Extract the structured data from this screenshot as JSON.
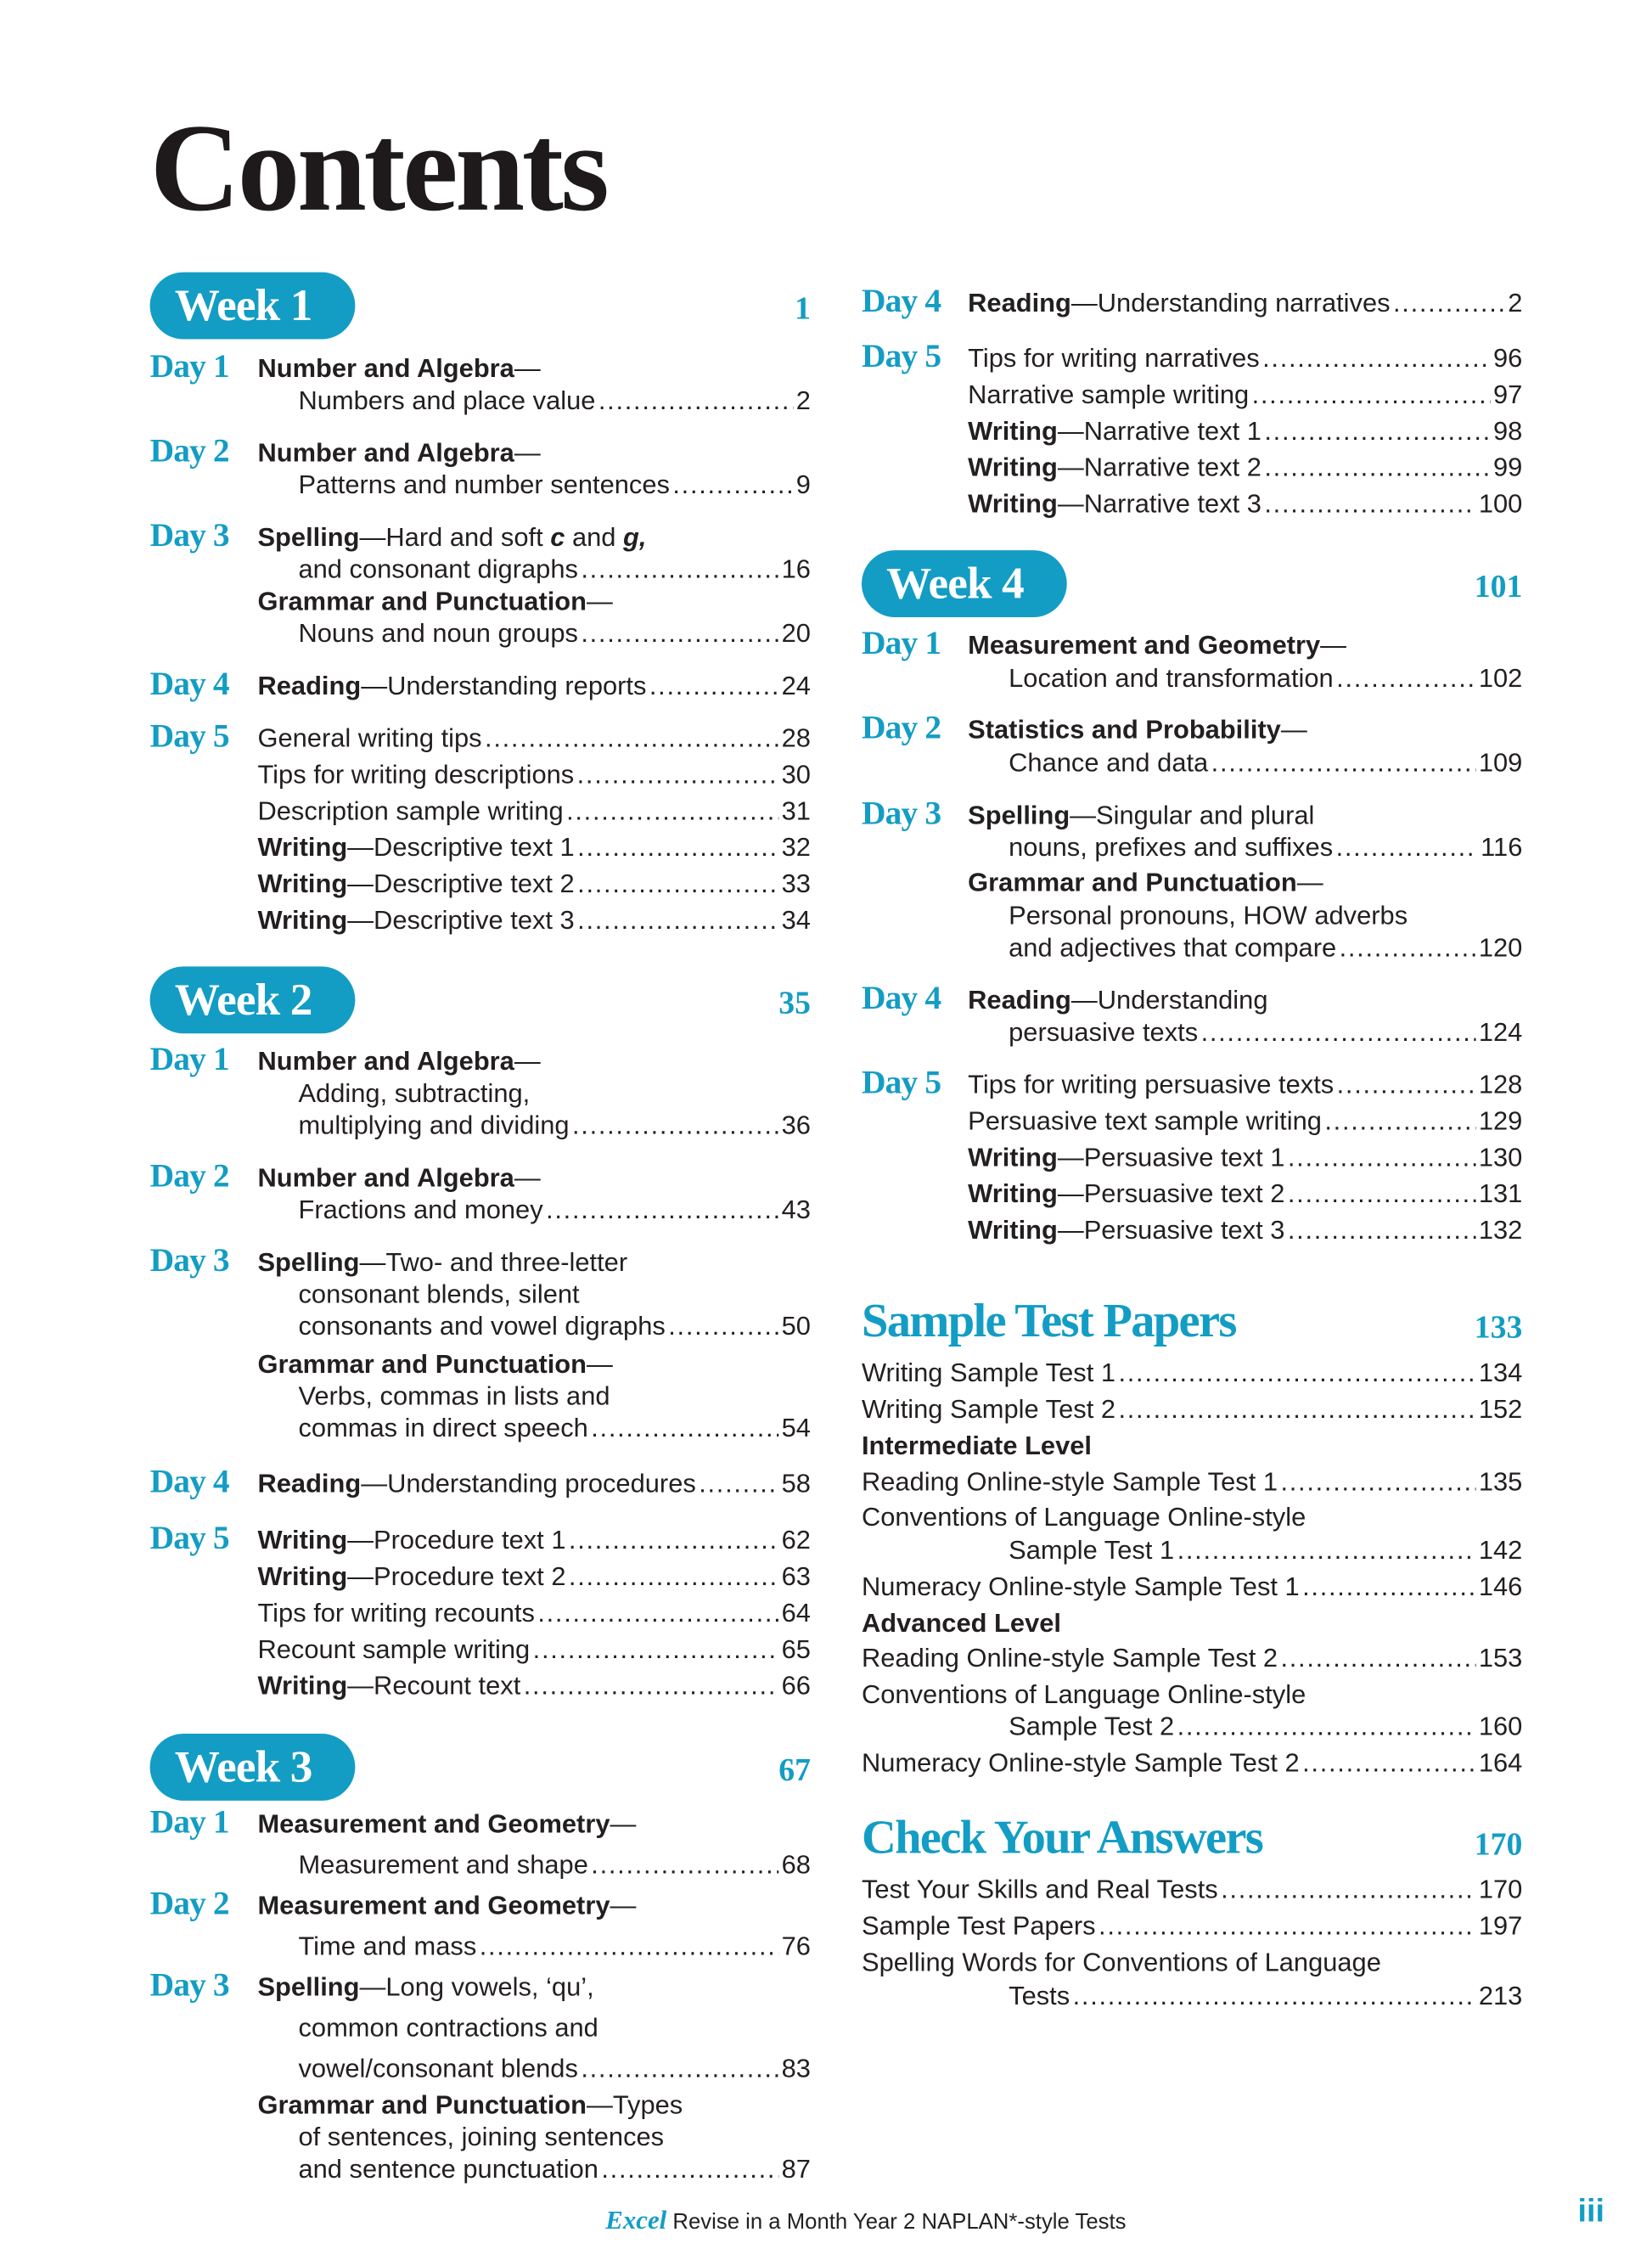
{
  "contents_title": "Contents",
  "accent_color": "#139dc4",
  "columns": [
    [
      {
        "type": "week",
        "label": "Week 1",
        "page": "1"
      },
      {
        "type": "day",
        "label": "Day 1",
        "lines": [
          {
            "parts": [
              {
                "s": "Number and Algebra",
                "strong": true
              },
              {
                "s": "—"
              }
            ]
          },
          {
            "parts": [
              {
                "s": "Numbers and place value"
              }
            ],
            "page": "2"
          }
        ]
      },
      {
        "type": "day",
        "label": "Day 2",
        "lines": [
          {
            "parts": [
              {
                "s": "Number and Algebra",
                "strong": true
              },
              {
                "s": "—"
              }
            ]
          },
          {
            "parts": [
              {
                "s": "Patterns and number sentences"
              }
            ],
            "page": "9"
          }
        ]
      },
      {
        "type": "day",
        "label": "Day 3",
        "lines": [
          {
            "parts": [
              {
                "s": "Spelling",
                "strong": true
              },
              {
                "s": "—Hard and soft "
              },
              {
                "s": "c",
                "em": true
              },
              {
                "s": " and "
              },
              {
                "s": "g,",
                "em": true
              }
            ]
          },
          {
            "parts": [
              {
                "s": "and consonant digraphs"
              }
            ],
            "page": "16"
          },
          {
            "parts": [
              {
                "s": "Grammar and Punctuation",
                "strong": true
              },
              {
                "s": "—"
              }
            ]
          },
          {
            "parts": [
              {
                "s": "Nouns and noun groups"
              }
            ],
            "page": "20"
          }
        ]
      },
      {
        "type": "day",
        "label": "Day 4",
        "lines": [
          {
            "parts": [
              {
                "s": "Reading",
                "strong": true
              },
              {
                "s": "—Understanding reports"
              }
            ],
            "page": "24"
          }
        ]
      },
      {
        "type": "day",
        "label": "Day 5",
        "lines": [
          {
            "parts": [
              {
                "s": "General writing tips"
              }
            ],
            "page": "28"
          },
          {
            "parts": [
              {
                "s": "Tips for writing descriptions"
              }
            ],
            "page": "30"
          },
          {
            "parts": [
              {
                "s": "Description sample writing"
              }
            ],
            "page": "31"
          },
          {
            "parts": [
              {
                "s": "Writing",
                "strong": true
              },
              {
                "s": "—Descriptive text 1"
              }
            ],
            "page": "32"
          },
          {
            "parts": [
              {
                "s": "Writing",
                "strong": true
              },
              {
                "s": "—Descriptive text 2"
              }
            ],
            "page": "33"
          },
          {
            "parts": [
              {
                "s": "Writing",
                "strong": true
              },
              {
                "s": "—Descriptive text 3"
              }
            ],
            "page": "34"
          }
        ]
      },
      {
        "type": "week",
        "label": "Week 2",
        "page": "35"
      },
      {
        "type": "day",
        "label": "Day 1",
        "lines": [
          {
            "parts": [
              {
                "s": "Number and Algebra",
                "strong": true
              },
              {
                "s": "—"
              }
            ]
          },
          {
            "parts": [
              {
                "s": "Adding, subtracting,"
              }
            ]
          },
          {
            "parts": [
              {
                "s": "multiplying and dividing"
              }
            ],
            "page": "36"
          }
        ]
      },
      {
        "type": "day",
        "label": "Day 2",
        "lines": [
          {
            "parts": [
              {
                "s": "Number and Algebra",
                "strong": true
              },
              {
                "s": "—"
              }
            ]
          },
          {
            "parts": [
              {
                "s": "Fractions and money"
              }
            ],
            "page": "43"
          }
        ]
      },
      {
        "type": "day",
        "label": "Day 3",
        "lines": [
          {
            "parts": [
              {
                "s": "Spelling",
                "strong": true
              },
              {
                "s": "—Two- and three-letter"
              }
            ]
          },
          {
            "parts": [
              {
                "s": "consonant blends, silent"
              }
            ]
          },
          {
            "parts": [
              {
                "s": "consonants and vowel digraphs"
              }
            ],
            "page": "50"
          },
          {
            "parts": [
              {
                "s": "Grammar and Punctuation",
                "strong": true
              },
              {
                "s": "—"
              }
            ]
          },
          {
            "parts": [
              {
                "s": "Verbs, commas in lists and"
              }
            ]
          },
          {
            "parts": [
              {
                "s": "commas in direct speech"
              }
            ],
            "page": "54"
          }
        ]
      },
      {
        "type": "day",
        "label": "Day 4",
        "lines": [
          {
            "parts": [
              {
                "s": "Reading",
                "strong": true
              },
              {
                "s": "—Understanding procedures"
              }
            ],
            "page": "58"
          }
        ]
      },
      {
        "type": "day",
        "label": "Day 5",
        "lines": [
          {
            "parts": [
              {
                "s": "Writing",
                "strong": true
              },
              {
                "s": "—Procedure text 1"
              }
            ],
            "page": "62"
          },
          {
            "parts": [
              {
                "s": "Writing",
                "strong": true
              },
              {
                "s": "—Procedure text 2"
              }
            ],
            "page": "63"
          },
          {
            "parts": [
              {
                "s": "Tips for writing recounts"
              }
            ],
            "page": "64"
          },
          {
            "parts": [
              {
                "s": "Recount sample writing"
              }
            ],
            "page": "65"
          },
          {
            "parts": [
              {
                "s": "Writing",
                "strong": true
              },
              {
                "s": "—Recount text"
              }
            ],
            "page": "66"
          }
        ]
      },
      {
        "type": "week",
        "label": "Week 3",
        "page": "67"
      },
      {
        "type": "day",
        "label": "Day 1",
        "lines": [
          {
            "parts": [
              {
                "s": "Measurement and Geometry",
                "strong": true
              },
              {
                "s": "—"
              }
            ]
          },
          {
            "parts": [
              {
                "s": "Measurement and shape"
              }
            ],
            "page": "68"
          }
        ]
      },
      {
        "type": "day",
        "label": "Day 2",
        "lines": [
          {
            "parts": [
              {
                "s": "Measurement and Geometry",
                "strong": true
              },
              {
                "s": "—"
              }
            ]
          },
          {
            "parts": [
              {
                "s": "Time and mass"
              }
            ],
            "page": "76"
          }
        ]
      },
      {
        "type": "day",
        "label": "Day 3",
        "lines": [
          {
            "parts": [
              {
                "s": "Spelling",
                "strong": true
              },
              {
                "s": "—Long vowels, ‘qu’,"
              }
            ]
          },
          {
            "parts": [
              {
                "s": "common contractions and"
              }
            ]
          },
          {
            "parts": [
              {
                "s": "vowel/consonant blends"
              }
            ],
            "page": "83"
          },
          {
            "parts": [
              {
                "s": "Grammar and Punctuation",
                "strong": true
              },
              {
                "s": "—Types"
              }
            ]
          },
          {
            "parts": [
              {
                "s": "of sentences, joining sentences"
              }
            ]
          },
          {
            "parts": [
              {
                "s": "and sentence punctuation"
              }
            ],
            "page": "87"
          }
        ]
      }
    ],
    [
      {
        "type": "day",
        "label": "Day 4",
        "lines": [
          {
            "parts": [
              {
                "s": "Reading",
                "strong": true
              },
              {
                "s": "—Understanding narratives"
              }
            ],
            "page": "2"
          }
        ]
      },
      {
        "type": "day",
        "label": "Day 5",
        "lines": [
          {
            "parts": [
              {
                "s": "Tips for writing narratives"
              }
            ],
            "page": "96"
          },
          {
            "parts": [
              {
                "s": "Narrative sample writing"
              }
            ],
            "page": "97"
          },
          {
            "parts": [
              {
                "s": "Writing",
                "strong": true
              },
              {
                "s": "—Narrative text 1"
              }
            ],
            "page": "98"
          },
          {
            "parts": [
              {
                "s": "Writing",
                "strong": true
              },
              {
                "s": "—Narrative text 2"
              }
            ],
            "page": "99"
          },
          {
            "parts": [
              {
                "s": "Writing",
                "strong": true
              },
              {
                "s": "—Narrative text 3"
              }
            ],
            "page": "100"
          }
        ]
      },
      {
        "type": "week",
        "label": "Week 4",
        "page": "101"
      },
      {
        "type": "day",
        "label": "Day 1",
        "lines": [
          {
            "parts": [
              {
                "s": "Measurement and Geometry",
                "strong": true
              },
              {
                "s": "—"
              }
            ]
          },
          {
            "parts": [
              {
                "s": "Location and transformation"
              }
            ],
            "page": "102"
          }
        ]
      },
      {
        "type": "day",
        "label": "Day 2",
        "lines": [
          {
            "parts": [
              {
                "s": "Statistics and Probability",
                "strong": true
              },
              {
                "s": "—"
              }
            ]
          },
          {
            "parts": [
              {
                "s": "Chance and data"
              }
            ],
            "page": "109"
          }
        ]
      },
      {
        "type": "day",
        "label": "Day 3",
        "lines": [
          {
            "parts": [
              {
                "s": "Spelling",
                "strong": true
              },
              {
                "s": "—Singular and plural"
              }
            ]
          },
          {
            "parts": [
              {
                "s": "nouns, prefixes and suffixes"
              }
            ],
            "page": "116"
          },
          {
            "parts": [
              {
                "s": "Grammar and Punctuation",
                "strong": true
              },
              {
                "s": "—"
              }
            ]
          },
          {
            "parts": [
              {
                "s": "Personal pronouns, HOW adverbs"
              }
            ]
          },
          {
            "parts": [
              {
                "s": "and adjectives that compare"
              }
            ],
            "page": "120"
          }
        ]
      },
      {
        "type": "day",
        "label": "Day 4",
        "lines": [
          {
            "parts": [
              {
                "s": "Reading",
                "strong": true
              },
              {
                "s": "—Understanding"
              }
            ]
          },
          {
            "parts": [
              {
                "s": "persuasive texts"
              }
            ],
            "page": "124"
          }
        ]
      },
      {
        "type": "day",
        "label": "Day 5",
        "lines": [
          {
            "parts": [
              {
                "s": "Tips for writing persuasive texts"
              }
            ],
            "page": "128"
          },
          {
            "parts": [
              {
                "s": "Persuasive text sample writing"
              }
            ],
            "page": "129"
          },
          {
            "parts": [
              {
                "s": "Writing",
                "strong": true
              },
              {
                "s": "—Persuasive text 1"
              }
            ],
            "page": "130"
          },
          {
            "parts": [
              {
                "s": "Writing",
                "strong": true
              },
              {
                "s": "—Persuasive text 2"
              }
            ],
            "page": "131"
          },
          {
            "parts": [
              {
                "s": "Writing",
                "strong": true
              },
              {
                "s": "—Persuasive text 3"
              }
            ],
            "page": "132"
          }
        ]
      },
      {
        "type": "section",
        "label": "Sample Test Papers",
        "page": "133"
      },
      {
        "type": "list",
        "lines": [
          {
            "parts": [
              {
                "s": "Writing Sample Test 1"
              }
            ],
            "page": "134"
          },
          {
            "parts": [
              {
                "s": "Writing Sample Test 2"
              }
            ],
            "page": "152"
          },
          {
            "parts": [
              {
                "s": "Intermediate Level",
                "strong": true
              }
            ]
          },
          {
            "parts": [
              {
                "s": "Reading Online-style Sample Test 1"
              }
            ],
            "page": "135"
          },
          {
            "parts": [
              {
                "s": "Conventions of Language Online-style"
              }
            ]
          },
          {
            "parts": [
              {
                "s": "Sample Test 1"
              }
            ],
            "page": "142"
          },
          {
            "parts": [
              {
                "s": "Numeracy Online-style Sample Test 1"
              }
            ],
            "page": "146"
          },
          {
            "parts": [
              {
                "s": "Advanced Level",
                "strong": true
              }
            ]
          },
          {
            "parts": [
              {
                "s": "Reading Online-style Sample Test 2"
              }
            ],
            "page": "153"
          },
          {
            "parts": [
              {
                "s": "Conventions of Language Online-style"
              }
            ]
          },
          {
            "parts": [
              {
                "s": "Sample Test 2"
              }
            ],
            "page": "160"
          },
          {
            "parts": [
              {
                "s": "Numeracy Online-style Sample Test 2"
              }
            ],
            "page": "164"
          }
        ]
      },
      {
        "type": "section",
        "label": "Check Your Answers",
        "page": "170"
      },
      {
        "type": "list",
        "lines": [
          {
            "parts": [
              {
                "s": "Test Your Skills and Real Tests"
              }
            ],
            "page": "170"
          },
          {
            "parts": [
              {
                "s": "Sample Test Papers"
              }
            ],
            "page": "197"
          },
          {
            "parts": [
              {
                "s": "Spelling Words for Conventions of Language"
              }
            ]
          },
          {
            "parts": [
              {
                "s": "Tests"
              }
            ],
            "page": "213"
          }
        ]
      }
    ]
  ],
  "footer": {
    "brand": "Excel",
    "text": " Revise in a Month Year 2 NAPLAN*-style Tests",
    "folio": "iii"
  }
}
